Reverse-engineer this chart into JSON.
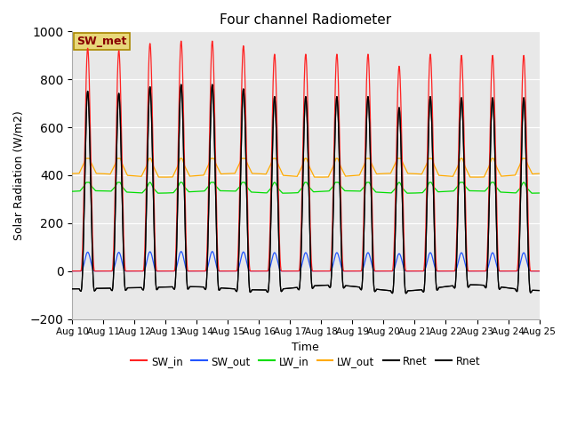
{
  "title": "Four channel Radiometer",
  "xlabel": "Time",
  "ylabel": "Solar Radiation (W/m2)",
  "ylim": [
    -200,
    1000
  ],
  "yticks": [
    -200,
    0,
    200,
    400,
    600,
    800,
    1000
  ],
  "n_days": 15,
  "pts_per_day": 480,
  "colors": {
    "SW_in": "#ff2222",
    "SW_out": "#2255ff",
    "LW_in": "#00dd00",
    "LW_out": "#ffaa00",
    "Rnet": "#000000",
    "Rnet2": "#111111"
  },
  "label_box_text": "SW_met",
  "bg_color": "#e8e8e8"
}
